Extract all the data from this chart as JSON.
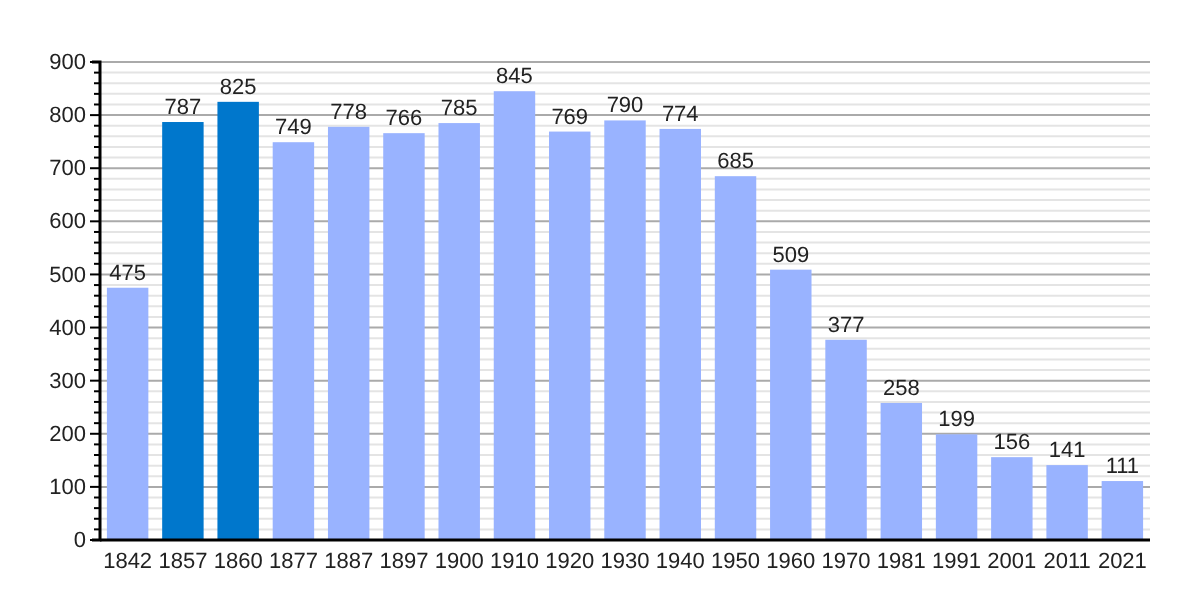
{
  "chart_data": {
    "type": "bar",
    "categories": [
      "1842",
      "1857",
      "1860",
      "1877",
      "1887",
      "1897",
      "1900",
      "1910",
      "1920",
      "1930",
      "1940",
      "1950",
      "1960",
      "1970",
      "1981",
      "1991",
      "2001",
      "2011",
      "2021"
    ],
    "values": [
      475,
      787,
      825,
      749,
      778,
      766,
      785,
      845,
      769,
      790,
      774,
      685,
      509,
      377,
      258,
      199,
      156,
      141,
      111
    ],
    "colors": [
      "#99b3ff",
      "#0077cc",
      "#0077cc",
      "#99b3ff",
      "#99b3ff",
      "#99b3ff",
      "#99b3ff",
      "#99b3ff",
      "#99b3ff",
      "#99b3ff",
      "#99b3ff",
      "#99b3ff",
      "#99b3ff",
      "#99b3ff",
      "#99b3ff",
      "#99b3ff",
      "#99b3ff",
      "#99b3ff",
      "#99b3ff"
    ],
    "ylim": [
      0,
      900
    ],
    "yticks": [
      0,
      {
        "value": 20,
        "label": null
      },
      {
        "value": 40,
        "label": null
      },
      {
        "value": 60,
        "label": null
      },
      {
        "value": 80,
        "label": null
      },
      100,
      {
        "value": 120,
        "label": null
      },
      {
        "value": 140,
        "label": null
      },
      {
        "value": 160,
        "label": null
      },
      {
        "value": 180,
        "label": null
      },
      200,
      {
        "value": 220,
        "label": null
      },
      {
        "value": 240,
        "label": null
      },
      {
        "value": 260,
        "label": null
      },
      {
        "value": 280,
        "label": null
      },
      300,
      {
        "value": 320,
        "label": null
      },
      {
        "value": 340,
        "label": null
      },
      {
        "value": 360,
        "label": null
      },
      {
        "value": 380,
        "label": null
      },
      400,
      {
        "value": 420,
        "label": null
      },
      {
        "value": 440,
        "label": null
      },
      {
        "value": 460,
        "label": null
      },
      {
        "value": 480,
        "label": null
      },
      500,
      {
        "value": 520,
        "label": null
      },
      {
        "value": 540,
        "label": null
      },
      {
        "value": 560,
        "label": null
      },
      {
        "value": 580,
        "label": null
      },
      600,
      {
        "value": 620,
        "label": null
      },
      {
        "value": 640,
        "label": null
      },
      {
        "value": 660,
        "label": null
      },
      {
        "value": 680,
        "label": null
      },
      700,
      {
        "value": 720,
        "label": null
      },
      {
        "value": 740,
        "label": null
      },
      {
        "value": 760,
        "label": null
      },
      {
        "value": 780,
        "label": null
      },
      800,
      {
        "value": 820,
        "label": null
      },
      {
        "value": 840,
        "label": null
      },
      {
        "value": 860,
        "label": null
      },
      {
        "value": 880,
        "label": null
      },
      900
    ],
    "grid": true,
    "data_labels": true
  }
}
